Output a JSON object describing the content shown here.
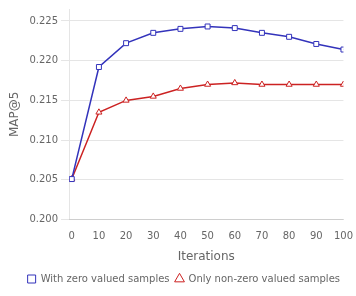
{
  "chart_data": {
    "type": "line",
    "x": [
      0,
      10,
      20,
      30,
      40,
      50,
      60,
      70,
      80,
      90,
      100
    ],
    "series": [
      {
        "name": "With zero valued samples",
        "color": "#3333bb",
        "marker": "square",
        "values": [
          0.2051,
          0.2192,
          0.2222,
          0.2235,
          0.224,
          0.2243,
          0.2241,
          0.2235,
          0.223,
          0.2221,
          0.2214
        ]
      },
      {
        "name": "Only non-zero valued samples",
        "color": "#cc2222",
        "marker": "triangle",
        "values": [
          0.2051,
          0.2135,
          0.215,
          0.2155,
          0.2165,
          0.217,
          0.2172,
          0.217,
          0.217,
          0.217,
          0.217
        ]
      }
    ],
    "xlabel": "Iterations",
    "ylabel": "MAP@5",
    "xlim": [
      -1,
      100
    ],
    "xticks": [
      0,
      10,
      20,
      30,
      40,
      50,
      60,
      70,
      80,
      90,
      100
    ],
    "ylim": [
      0.2,
      0.2265
    ],
    "yticks": [
      {
        "value": 0.2,
        "label": "0.200"
      },
      0.205,
      {
        "value": 0.21,
        "label": "0.210"
      },
      0.215,
      {
        "value": 0.22,
        "label": "0.220"
      },
      0.225
    ],
    "grid": "y",
    "legend": "lower right"
  }
}
